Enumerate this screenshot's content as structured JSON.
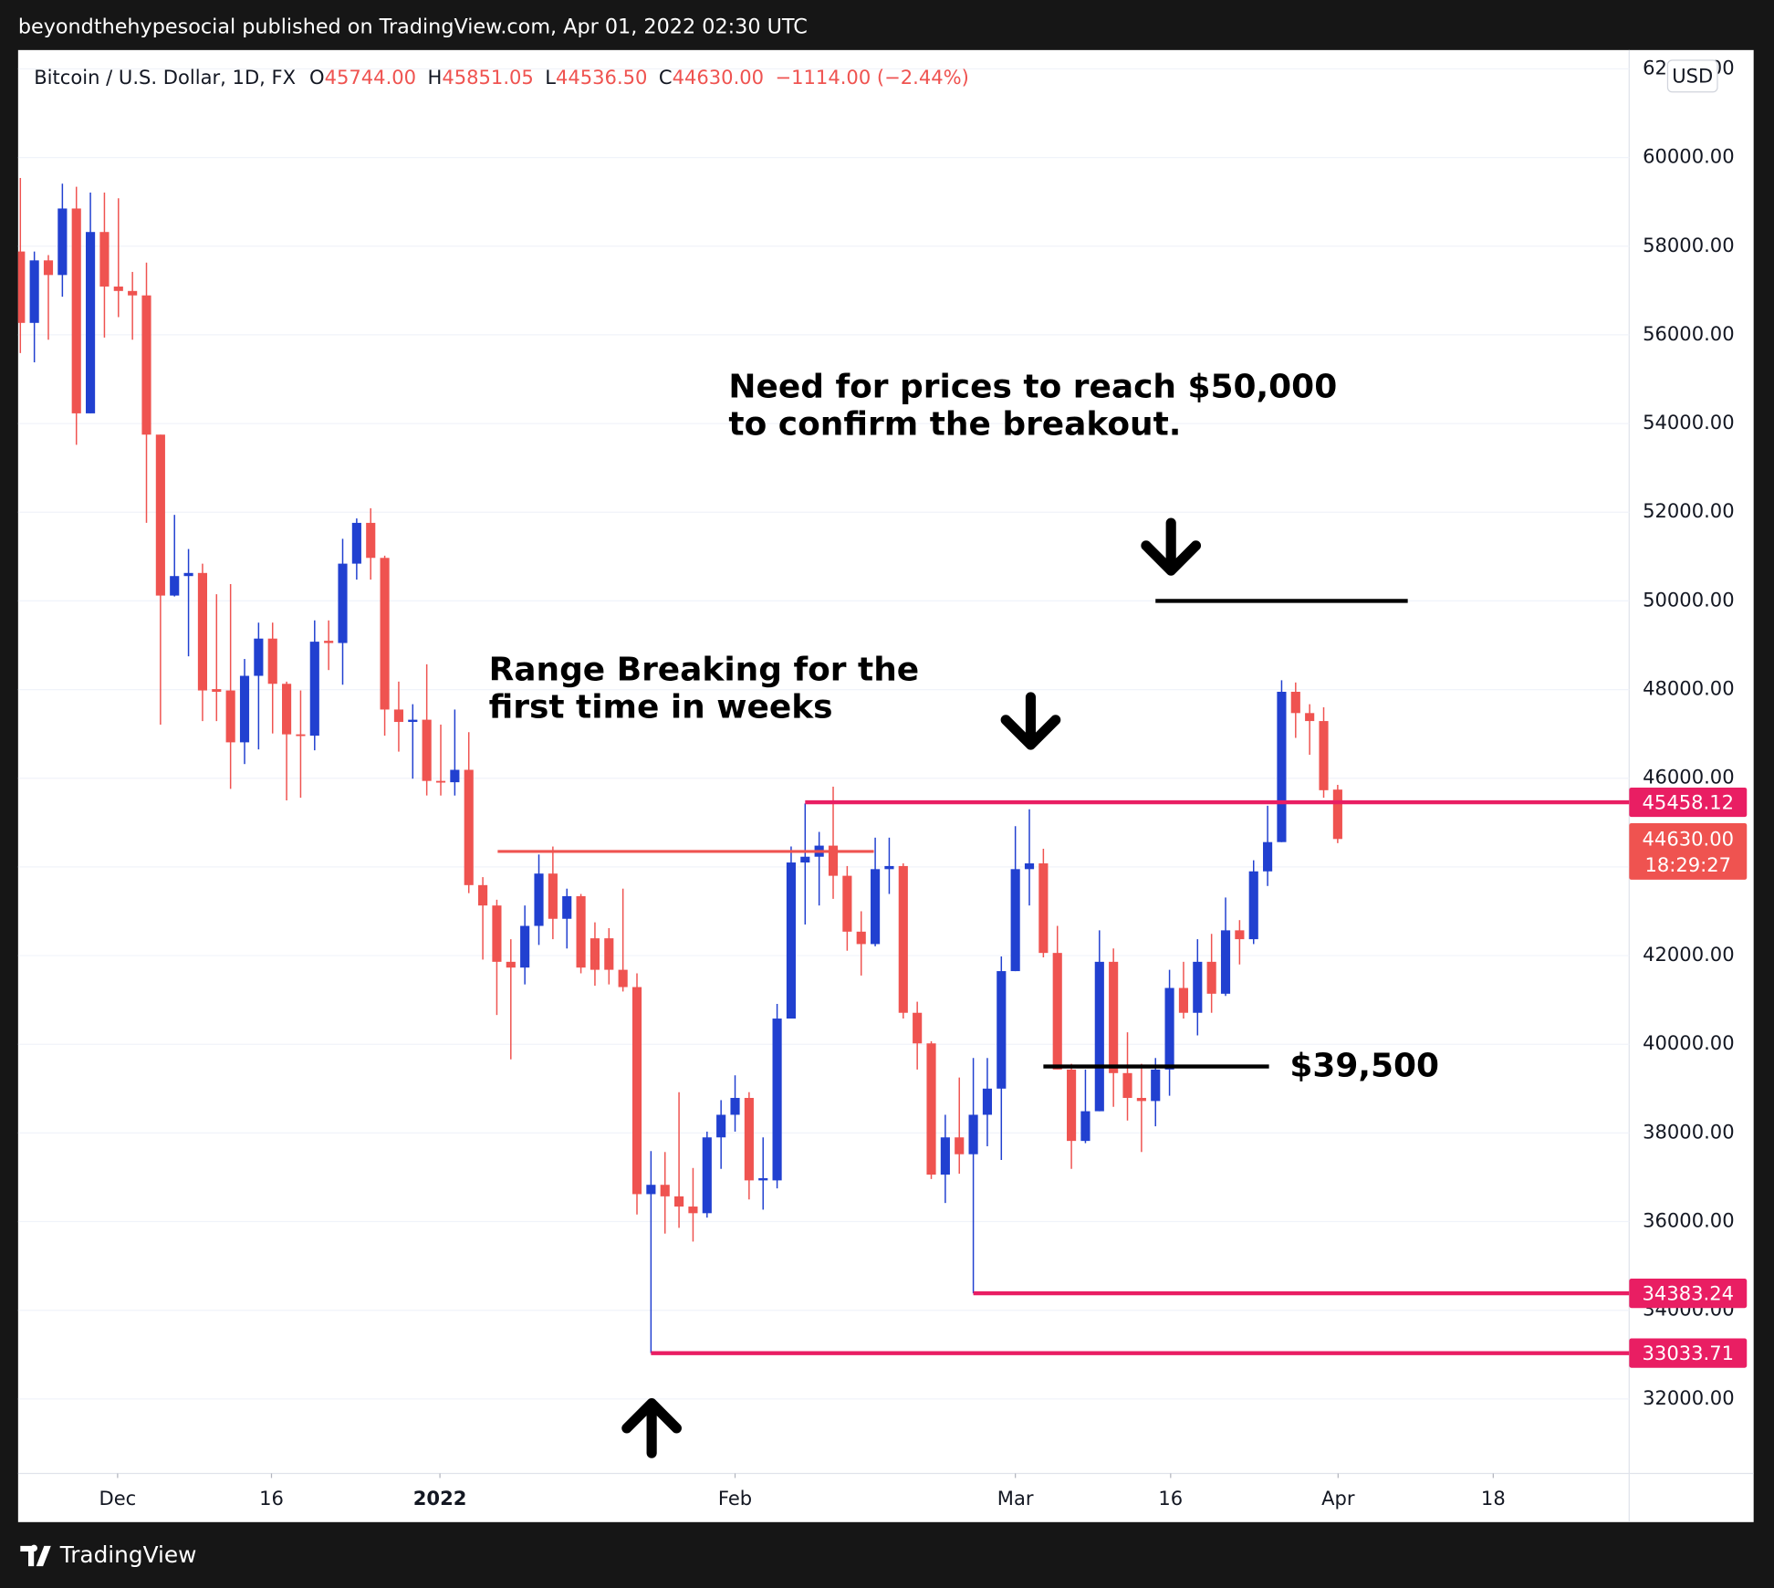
{
  "header": {
    "text": "beyondthehypesocial published on TradingView.com, Apr 01, 2022 02:30 UTC"
  },
  "chart_data": {
    "type": "candlestick",
    "symbol": "Bitcoin / U.S. Dollar, 1D, FX",
    "ohlc_legend": [
      {
        "key": "O",
        "value": "45744.00"
      },
      {
        "key": "H",
        "value": "45851.05"
      },
      {
        "key": "L",
        "value": "44536.50"
      },
      {
        "key": "C",
        "value": "44630.00"
      }
    ],
    "change": "−1114.00 (−2.44%)",
    "currency": "USD",
    "open": [
      57880,
      56270,
      57680,
      57350,
      58850,
      54230,
      58320,
      57090,
      56990,
      56890,
      53750,
      50120,
      50560,
      50630,
      48010,
      47980,
      46810,
      48310,
      49150,
      48130,
      46990,
      46960,
      49100,
      49050,
      50840,
      51760,
      50970,
      47550,
      47270,
      47320,
      45940,
      45910,
      46190,
      43590,
      43130,
      41860,
      41730,
      42670,
      43850,
      42830,
      43340,
      42390,
      42390,
      41680,
      41290,
      36620,
      36830,
      36570,
      36340,
      36190,
      37900,
      38410,
      38790,
      36930,
      36930,
      40580,
      44100,
      44230,
      44480,
      43800,
      42540,
      42260,
      43950,
      44020,
      40710,
      40020,
      37060,
      37900,
      37520,
      38410,
      39000,
      41650,
      43950,
      44080,
      42060,
      39430,
      37820,
      38490,
      41860,
      39350,
      38790,
      38720,
      39430,
      41270,
      40710,
      41860,
      41140,
      42570,
      42370,
      43900,
      44560,
      47950,
      47470,
      47290,
      45744
    ],
    "high": [
      59540,
      57880,
      57800,
      59410,
      59340,
      59210,
      59210,
      59080,
      57420,
      57630,
      53750,
      51940,
      51170,
      50840,
      50150,
      50380,
      48690,
      49510,
      49510,
      48180,
      47980,
      49560,
      49560,
      51400,
      51860,
      52090,
      51020,
      48180,
      47670,
      48570,
      47210,
      47550,
      47040,
      43770,
      43260,
      42370,
      43130,
      44280,
      44460,
      43510,
      43390,
      42750,
      42620,
      43510,
      41600,
      37590,
      37570,
      38920,
      37210,
      38030,
      38740,
      39300,
      38920,
      37900,
      40910,
      44460,
      45430,
      44790,
      45810,
      44020,
      43000,
      44660,
      44660,
      44080,
      40960,
      40070,
      38410,
      39250,
      39690,
      39690,
      41980,
      44920,
      45300,
      44410,
      42670,
      39560,
      39430,
      42570,
      42160,
      40270,
      39560,
      39690,
      41680,
      41860,
      42370,
      42490,
      43310,
      42800,
      44150,
      45380,
      48210,
      48160,
      47670,
      47600,
      45851.05
    ],
    "low": [
      55590,
      55380,
      55890,
      56860,
      53520,
      54230,
      55940,
      56400,
      55890,
      51760,
      47210,
      50100,
      48750,
      47290,
      47290,
      45760,
      46320,
      46650,
      47010,
      45500,
      45560,
      46630,
      48440,
      48110,
      50480,
      50480,
      46960,
      46600,
      45990,
      45610,
      45610,
      45610,
      43410,
      41910,
      40660,
      39660,
      41350,
      42240,
      42370,
      42160,
      41600,
      41320,
      41350,
      41190,
      36160,
      33033.71,
      35730,
      35860,
      35550,
      36090,
      37190,
      38030,
      36500,
      36270,
      36750,
      40580,
      42700,
      43130,
      43280,
      42110,
      41550,
      42210,
      43390,
      40580,
      39430,
      36960,
      36420,
      37080,
      34383.24,
      37700,
      37390,
      41650,
      43130,
      41960,
      39430,
      37190,
      37770,
      38490,
      38590,
      38280,
      37570,
      38150,
      38840,
      40580,
      40200,
      40710,
      41090,
      41800,
      42260,
      43570,
      44560,
      46910,
      46530,
      45560,
      44536.5
    ],
    "close": [
      56270,
      57680,
      57350,
      58850,
      54230,
      58320,
      57090,
      56990,
      56890,
      53750,
      50120,
      50560,
      50630,
      47980,
      47950,
      46810,
      48310,
      49150,
      48130,
      46990,
      46960,
      49080,
      49050,
      50840,
      51760,
      50970,
      47550,
      47270,
      47320,
      45940,
      45910,
      46190,
      43590,
      43130,
      41860,
      41730,
      42670,
      43850,
      42830,
      43340,
      41730,
      41680,
      41680,
      41290,
      36620,
      36830,
      36570,
      36340,
      36190,
      37900,
      38410,
      38790,
      36930,
      36980,
      40580,
      44100,
      44230,
      44480,
      43800,
      42540,
      42260,
      43950,
      44020,
      40710,
      40020,
      37060,
      37900,
      37520,
      38410,
      39000,
      41650,
      43950,
      44080,
      42060,
      39430,
      37820,
      38490,
      41860,
      39350,
      38790,
      38720,
      39430,
      41270,
      40710,
      41860,
      41140,
      42570,
      42370,
      43900,
      44560,
      47950,
      47470,
      47290,
      45730,
      44630
    ],
    "up_color": "#2140d0",
    "down_color": "#ef5350",
    "xlim": [
      -0.16,
      114.8
    ],
    "xticks": [
      {
        "value": 6.94,
        "label": "Dec"
      },
      {
        "value": 17.92,
        "label": "16"
      },
      {
        "value": 29.94,
        "label": "2022"
      },
      {
        "value": 51.0,
        "label": "Feb"
      },
      {
        "value": 71.0,
        "label": "Mar"
      },
      {
        "value": 82.08,
        "label": "16"
      },
      {
        "value": 94.03,
        "label": "Apr"
      },
      {
        "value": 105.1,
        "label": "18"
      }
    ],
    "ylim": [
      30320,
      62424
    ],
    "yticks": [
      {
        "value": 32000,
        "label": "32000.00"
      },
      {
        "value": 34000,
        "label": "34000.00"
      },
      {
        "value": 36000,
        "label": "36000.00"
      },
      {
        "value": 38000,
        "label": "38000.00"
      },
      {
        "value": 40000,
        "label": "40000.00"
      },
      {
        "value": 42000,
        "label": "42000.00"
      },
      {
        "value": 44000,
        "label": "44000.00"
      },
      {
        "value": 46000,
        "label": "46000.00"
      },
      {
        "value": 48000,
        "label": "48000.00"
      },
      {
        "value": 50000,
        "label": "50000.00"
      },
      {
        "value": 52000,
        "label": "52000.00"
      },
      {
        "value": 54000,
        "label": "54000.00"
      },
      {
        "value": 56000,
        "label": "56000.00"
      },
      {
        "value": 58000,
        "label": "58000.00"
      },
      {
        "value": 60000,
        "label": "60000.00"
      },
      {
        "value": 62000,
        "label": "62000.00"
      }
    ],
    "grid": true,
    "price_lines": [
      {
        "value": 45458.12,
        "x_start": 56,
        "color": "#e91e63"
      },
      {
        "value": 34383.24,
        "x_start": 68,
        "color": "#e91e63"
      },
      {
        "value": 33033.71,
        "x_start": 45,
        "color": "#e91e63"
      }
    ],
    "trend_lines": [
      {
        "value": 44350,
        "x": [
          34.06,
          60.9
        ],
        "color": "#ef5350"
      },
      {
        "value": 50000,
        "x": [
          81.0,
          99.0
        ],
        "color": "#000000"
      },
      {
        "value": 39500,
        "x": [
          73.0,
          89.1
        ],
        "color": "#000000"
      }
    ],
    "last_price": {
      "value": 44630,
      "label": "44630.00",
      "countdown": "18:29:27",
      "color": "#ef5350"
    },
    "annotations": [
      {
        "lines": [
          "Need for prices to reach $50,000",
          "to confirm the breakout."
        ]
      },
      {
        "lines": [
          "Range Breaking for the",
          "first time in weeks"
        ]
      },
      {
        "lines": [
          "$39,500"
        ]
      }
    ]
  },
  "footer": {
    "brand": "TradingView"
  }
}
